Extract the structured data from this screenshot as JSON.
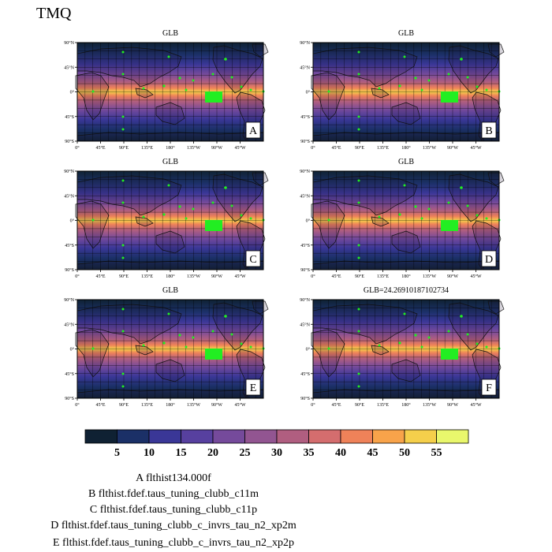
{
  "figure": {
    "title": "TMQ"
  },
  "axes": {
    "lat_ticks": [
      "90°N",
      "45°N",
      "0°",
      "45°S",
      "90°S"
    ],
    "lon_ticks": [
      "0°",
      "45°E",
      "90°E",
      "135°E",
      "180°",
      "135°W",
      "90°W",
      "45°W"
    ]
  },
  "panels": [
    {
      "label": "A",
      "header": "GLB"
    },
    {
      "label": "B",
      "header": "GLB"
    },
    {
      "label": "C",
      "header": "GLB"
    },
    {
      "label": "D",
      "header": "GLB"
    },
    {
      "label": "E",
      "header": "GLB"
    },
    {
      "label": "F",
      "header": "GLB=24.26910187102734"
    }
  ],
  "colorbar": {
    "labels": [
      "5",
      "10",
      "15",
      "20",
      "25",
      "30",
      "35",
      "40",
      "45",
      "50",
      "55"
    ],
    "colors": [
      "#0f2133",
      "#1b3067",
      "#3a3797",
      "#57409f",
      "#754a9b",
      "#925591",
      "#b05e80",
      "#d46d6e",
      "#ef8259",
      "#f8a34a",
      "#f5cf4b",
      "#e9f76c"
    ]
  },
  "cases": [
    {
      "label": "A",
      "name": "flthist134.000f"
    },
    {
      "label": "B",
      "name": "flthist.fdef.taus_tuning_clubb_c11m"
    },
    {
      "label": "C",
      "name": "flthist.fdef.taus_tuning_clubb_c11p"
    },
    {
      "label": "D",
      "name": "flthist.fdef.taus_tuning_clubb_c_invrs_tau_n2_xp2m"
    },
    {
      "label": "E",
      "name": "flthist.fdef.taus_tuning_clubb_c_invrs_tau_n2_xp2p"
    }
  ],
  "marker_color": "#22ee22",
  "chart_data": {
    "type": "map-panels",
    "variable": "TMQ",
    "region": "GLB",
    "global_mean_F": 24.26910187102734,
    "lat_range": [
      -90,
      90
    ],
    "lon_range": [
      0,
      360
    ],
    "colorbar_levels": [
      5,
      10,
      15,
      20,
      25,
      30,
      35,
      40,
      45,
      50,
      55
    ]
  }
}
